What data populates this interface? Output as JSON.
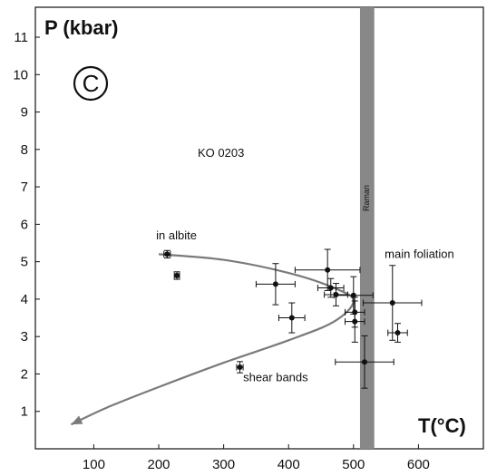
{
  "chart_data": {
    "type": "scatter",
    "panel_label": "C",
    "xlabel": "T(°C)",
    "ylabel": "P (kbar)",
    "xlim": [
      10,
      700
    ],
    "ylim": [
      0,
      11.8
    ],
    "x_ticks": [
      100,
      200,
      300,
      400,
      500,
      600
    ],
    "y_ticks": [
      1,
      2,
      3,
      4,
      5,
      6,
      7,
      8,
      9,
      10,
      11
    ],
    "grid": false,
    "annotations": [
      {
        "text": "KO 0203",
        "x": 260,
        "y": 7.8
      },
      {
        "text": "in albite",
        "x": 196,
        "y": 5.6
      },
      {
        "text": "main foliation",
        "x": 548,
        "y": 5.1
      },
      {
        "text": "shear bands",
        "x": 330,
        "y": 1.8
      }
    ],
    "raman_band": {
      "label": "Raman",
      "x_range": [
        510,
        532
      ],
      "color": "#888888"
    },
    "points": [
      {
        "x": 213,
        "y": 5.2,
        "xerr": 5,
        "yerr": 0.1
      },
      {
        "x": 228,
        "y": 4.63,
        "xerr": 4,
        "yerr": 0.1
      },
      {
        "x": 325,
        "y": 2.18,
        "xerr": 5,
        "yerr": 0.15
      },
      {
        "x": 380,
        "y": 4.4,
        "xerr": 30,
        "yerr": 0.55
      },
      {
        "x": 405,
        "y": 3.5,
        "xerr": 20,
        "yerr": 0.4
      },
      {
        "x": 460,
        "y": 4.78,
        "xerr": 50,
        "yerr": 0.55
      },
      {
        "x": 465,
        "y": 4.3,
        "xerr": 20,
        "yerr": 0.25
      },
      {
        "x": 473,
        "y": 4.12,
        "xerr": 18,
        "yerr": 0.3
      },
      {
        "x": 500,
        "y": 4.1,
        "xerr": 30,
        "yerr": 0.5
      },
      {
        "x": 502,
        "y": 3.65,
        "xerr": 15,
        "yerr": 0.4
      },
      {
        "x": 502,
        "y": 3.4,
        "xerr": 15,
        "yerr": 0.55
      },
      {
        "x": 517,
        "y": 2.32,
        "xerr": 45,
        "yerr": 0.7
      },
      {
        "x": 560,
        "y": 3.9,
        "xerr": 45,
        "yerr": 1.0
      },
      {
        "x": 568,
        "y": 3.1,
        "xerr": 15,
        "yerr": 0.25
      }
    ],
    "pt_path": {
      "points": [
        [
          200,
          5.2
        ],
        [
          300,
          5.05
        ],
        [
          400,
          4.7
        ],
        [
          470,
          4.3
        ],
        [
          500,
          3.95
        ],
        [
          470,
          3.4
        ],
        [
          400,
          2.9
        ],
        [
          300,
          2.3
        ],
        [
          200,
          1.65
        ],
        [
          120,
          1.1
        ],
        [
          65,
          0.65
        ]
      ],
      "arrow_end": true,
      "color": "#7a7a7a"
    }
  }
}
